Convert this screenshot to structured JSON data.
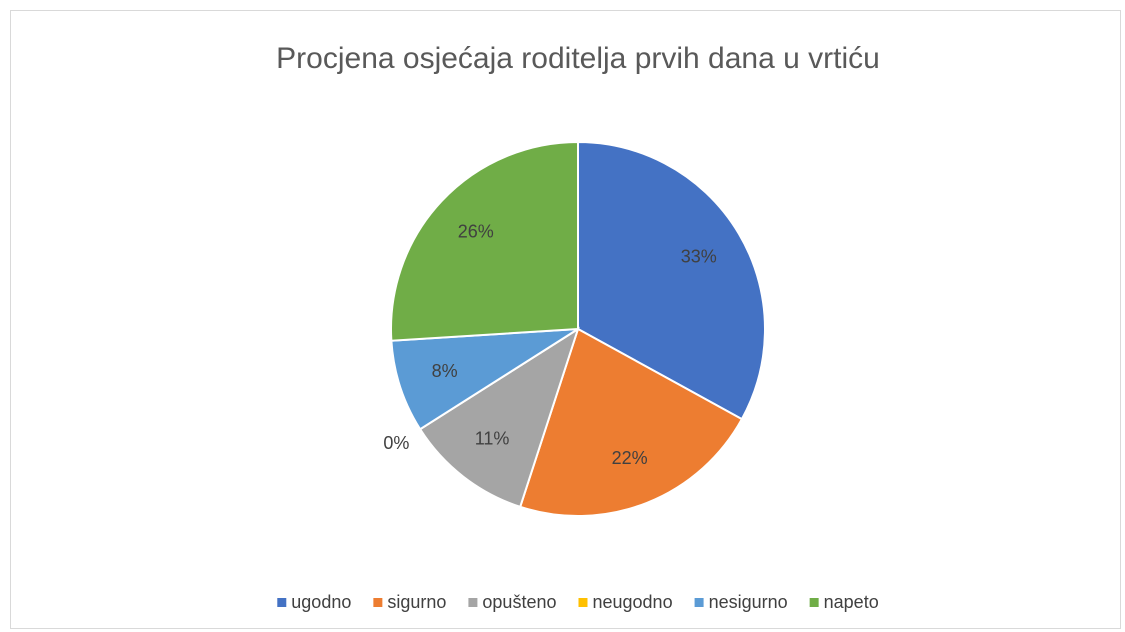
{
  "chart_data": {
    "type": "pie",
    "title": "Procjena osjećaja roditelja prvih dana u vrtiću",
    "categories": [
      "ugodno",
      "sigurno",
      "opušteno",
      "neugodno",
      "nesigurno",
      "napeto"
    ],
    "values": [
      33,
      22,
      11,
      0,
      8,
      26
    ],
    "value_labels": [
      "33%",
      "22%",
      "11%",
      "0%",
      "8%",
      "26%"
    ],
    "colors": [
      "#4472c4",
      "#ed7d31",
      "#a5a5a5",
      "#ffc000",
      "#5b9bd5",
      "#70ad47"
    ],
    "legend": "bottom"
  }
}
